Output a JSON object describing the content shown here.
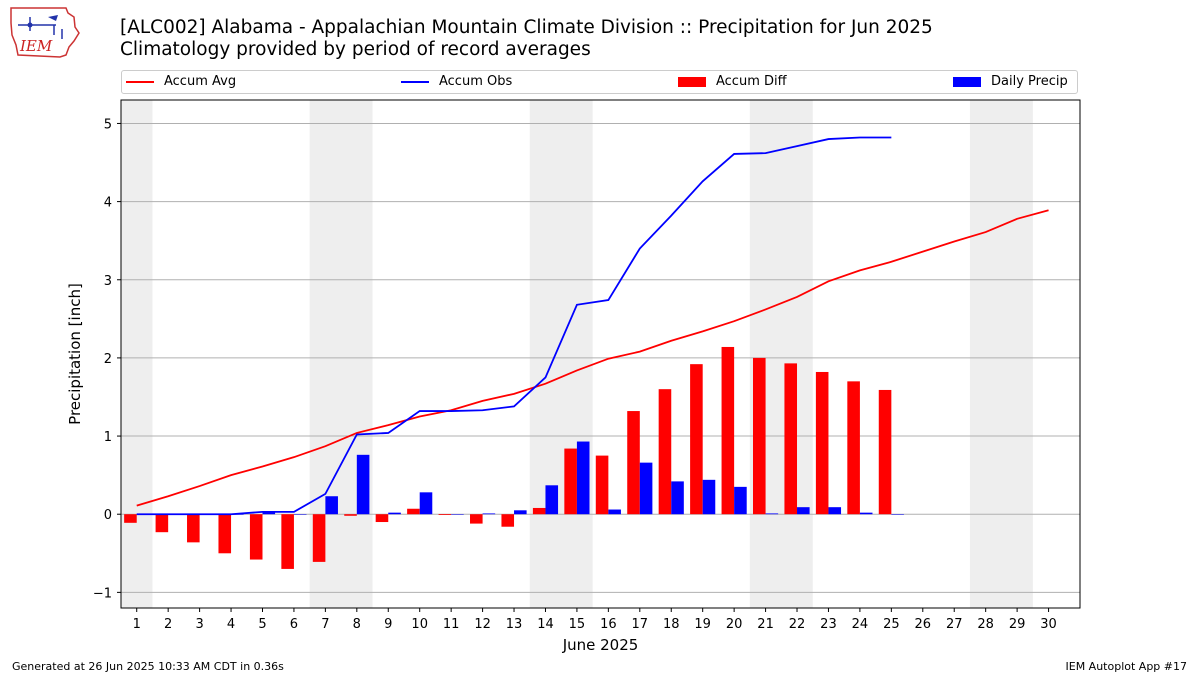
{
  "title": "[ALC002] Alabama - Appalachian Mountain Climate Division :: Precipitation for Jun 2025",
  "subtitle": "Climatology provided by period of record averages",
  "logo_text": "IEM",
  "footer_left": "Generated at 26 Jun 2025 10:33 AM CDT in 0.36s",
  "footer_right": "IEM Autoplot App #17",
  "colors": {
    "avg": "#ff0000",
    "obs": "#0000ff",
    "diff": "#ff0000",
    "daily": "#0000ff",
    "weekend": "#eeeeee",
    "grid": "#b0b0b0"
  },
  "chart_data": {
    "type": "bar",
    "xlabel": "June 2025",
    "ylabel": "Precipitation [inch]",
    "xlim": [
      0.5,
      31
    ],
    "ylim": [
      -1.2,
      5.3
    ],
    "yticks": [
      -1,
      0,
      1,
      2,
      3,
      4,
      5
    ],
    "xticks": [
      1,
      2,
      3,
      4,
      5,
      6,
      7,
      8,
      9,
      10,
      11,
      12,
      13,
      14,
      15,
      16,
      17,
      18,
      19,
      20,
      21,
      22,
      23,
      24,
      25,
      26,
      27,
      28,
      29,
      30
    ],
    "grid": "horizontal",
    "legend_placement": "top",
    "weekend_shading": [
      [
        0.5,
        1.5
      ],
      [
        6.5,
        8.5
      ],
      [
        13.5,
        15.5
      ],
      [
        20.5,
        22.5
      ],
      [
        27.5,
        29.5
      ]
    ],
    "legend": [
      "Accum Avg",
      "Accum Obs",
      "Accum Diff",
      "Daily Precip"
    ],
    "series": [
      {
        "name": "Accum Avg",
        "kind": "line",
        "x": [
          1,
          2,
          3,
          4,
          5,
          6,
          7,
          8,
          9,
          10,
          11,
          12,
          13,
          14,
          15,
          16,
          17,
          18,
          19,
          20,
          21,
          22,
          23,
          24,
          25,
          26,
          27,
          28,
          29,
          30
        ],
        "values": [
          0.11,
          0.23,
          0.36,
          0.5,
          0.61,
          0.73,
          0.87,
          1.04,
          1.14,
          1.25,
          1.33,
          1.45,
          1.54,
          1.67,
          1.84,
          1.99,
          2.08,
          2.22,
          2.34,
          2.47,
          2.62,
          2.78,
          2.98,
          3.12,
          3.23,
          3.36,
          3.49,
          3.61,
          3.78,
          3.89
        ]
      },
      {
        "name": "Accum Obs",
        "kind": "line",
        "x": [
          1,
          2,
          3,
          4,
          5,
          6,
          7,
          8,
          9,
          10,
          11,
          12,
          13,
          14,
          15,
          16,
          17,
          18,
          19,
          20,
          21,
          22,
          23,
          24,
          25
        ],
        "values": [
          0.0,
          0.0,
          0.0,
          0.0,
          0.03,
          0.03,
          0.26,
          1.02,
          1.04,
          1.32,
          1.32,
          1.33,
          1.38,
          1.75,
          2.68,
          2.74,
          3.4,
          3.82,
          4.26,
          4.61,
          4.62,
          4.71,
          4.8,
          4.82,
          4.82
        ]
      },
      {
        "name": "Accum Diff",
        "kind": "bar",
        "x": [
          1,
          2,
          3,
          4,
          5,
          6,
          7,
          8,
          9,
          10,
          11,
          12,
          13,
          14,
          15,
          16,
          17,
          18,
          19,
          20,
          21,
          22,
          23,
          24,
          25
        ],
        "values": [
          -0.11,
          -0.23,
          -0.36,
          -0.5,
          -0.58,
          -0.7,
          -0.61,
          -0.02,
          -0.1,
          0.07,
          -0.01,
          -0.12,
          -0.16,
          0.08,
          0.84,
          0.75,
          1.32,
          1.6,
          1.92,
          2.14,
          2.0,
          1.93,
          1.82,
          1.7,
          1.59
        ]
      },
      {
        "name": "Daily Precip",
        "kind": "bar",
        "x": [
          1,
          2,
          3,
          4,
          5,
          6,
          7,
          8,
          9,
          10,
          11,
          12,
          13,
          14,
          15,
          16,
          17,
          18,
          19,
          20,
          21,
          22,
          23,
          24,
          25
        ],
        "values": [
          0.0,
          0.0,
          0.0,
          0.0,
          0.03,
          0.0,
          0.23,
          0.76,
          0.02,
          0.28,
          0.0,
          0.01,
          0.05,
          0.37,
          0.93,
          0.06,
          0.66,
          0.42,
          0.44,
          0.35,
          0.01,
          0.09,
          0.09,
          0.02,
          0.0
        ]
      }
    ]
  }
}
